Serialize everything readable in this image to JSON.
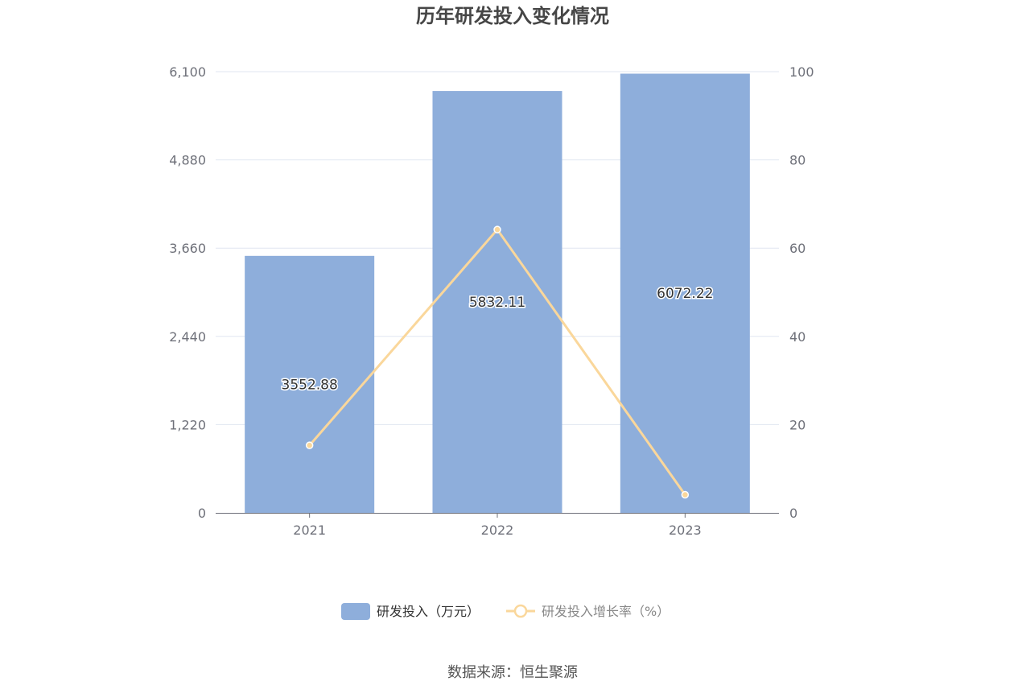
{
  "chart_data": {
    "type": "bar",
    "title": "历年研发投入变化情况",
    "categories": [
      "2021",
      "2022",
      "2023"
    ],
    "series": [
      {
        "name": "研发投入（万元）",
        "type": "bar",
        "axis": "left",
        "values": [
          3552.88,
          5832.11,
          6072.22
        ],
        "labels": [
          "3552.88",
          "5832.11",
          "6072.22"
        ],
        "color": "#8eaedb"
      },
      {
        "name": "研发投入增长率（%）",
        "type": "line",
        "axis": "right",
        "values": [
          15.3,
          64.2,
          4.1
        ],
        "color": "#fad79b"
      }
    ],
    "y_left": {
      "ylim": [
        0,
        6100
      ],
      "ticks": [
        0,
        1220,
        2440,
        3660,
        4880,
        6100
      ],
      "tick_labels": [
        "0",
        "1,220",
        "2,440",
        "3,660",
        "4,880",
        "6,100"
      ]
    },
    "y_right": {
      "ylim": [
        0,
        100
      ],
      "ticks": [
        0,
        20,
        40,
        60,
        80,
        100
      ],
      "tick_labels": [
        "0",
        "20",
        "40",
        "60",
        "80",
        "100"
      ]
    },
    "grid": true,
    "legend_position": "bottom-center"
  },
  "source": "数据来源：恒生聚源",
  "colors": {
    "bar": "#8eaedb",
    "line": "#fad79b",
    "grid": "#e0e6f1",
    "axis": "#6e7079"
  }
}
